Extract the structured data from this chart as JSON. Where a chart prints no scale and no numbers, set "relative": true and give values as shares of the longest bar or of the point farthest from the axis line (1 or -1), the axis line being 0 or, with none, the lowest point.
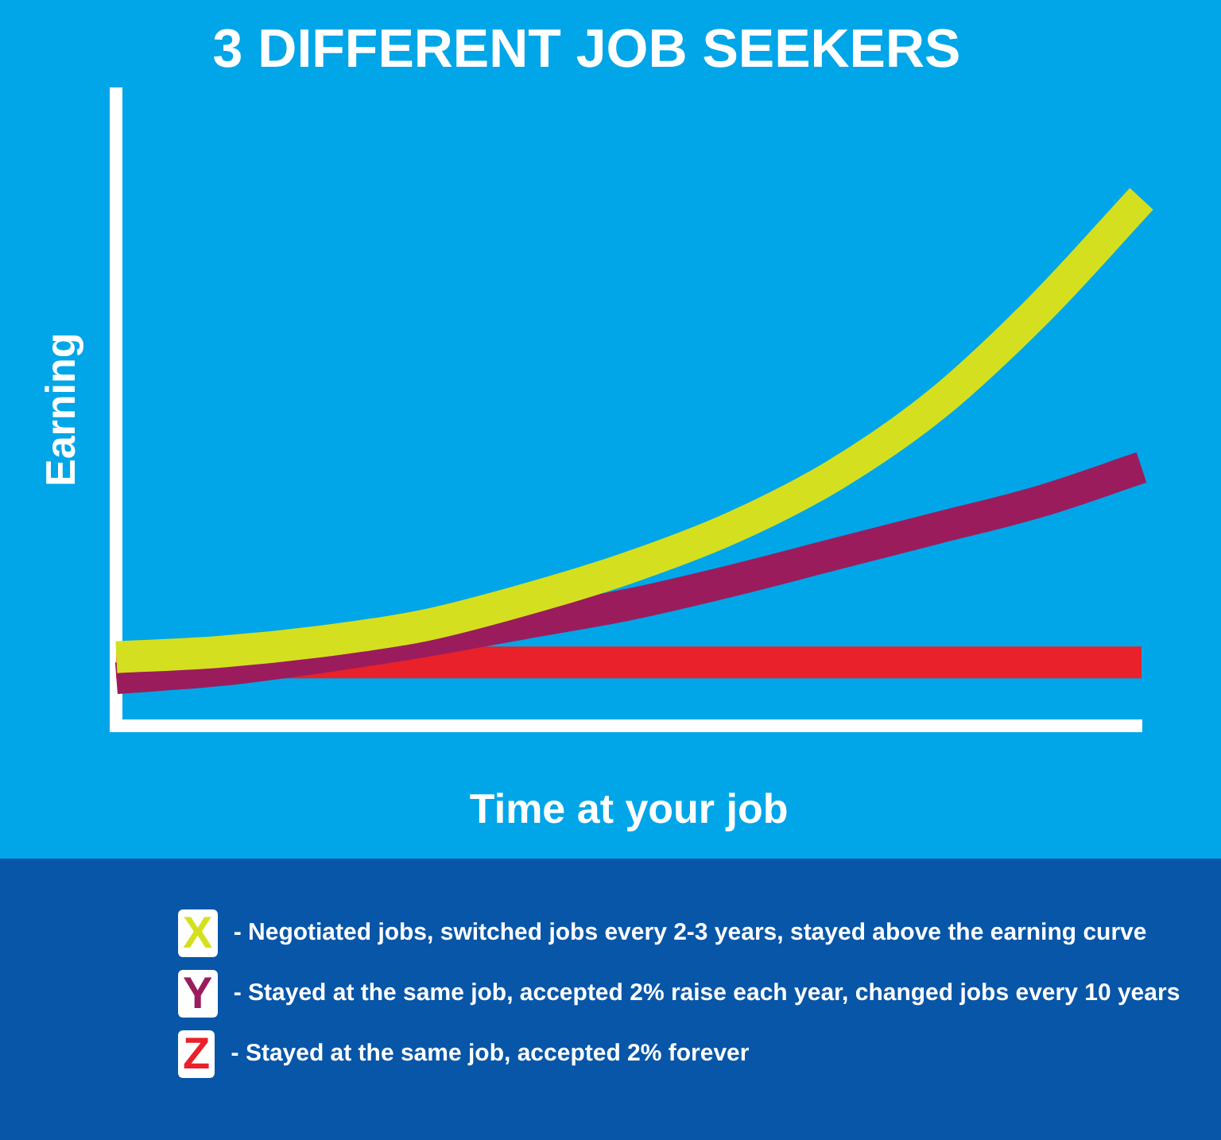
{
  "chart_data": {
    "type": "line",
    "title": "3 DIFFERENT JOB SEEKERS",
    "xlabel": "Time at your job",
    "ylabel": "Earning",
    "relative": true,
    "grid": false,
    "legend": "bottom",
    "categories": [
      null,
      null,
      null,
      null,
      null,
      null,
      null,
      null,
      null,
      null,
      null
    ],
    "series": [
      {
        "name": "X - Negotiated jobs, switched jobs every 2-3 years, stayed above the earning curve",
        "color": "#d4e01f",
        "values": [
          0.13,
          0.14,
          0.16,
          0.19,
          0.24,
          0.3,
          0.375,
          0.475,
          0.61,
          0.79,
          1.0
        ]
      },
      {
        "name": "Y - Stayed at the same job, accepted 2% raise each year, changed jobs every 10 years",
        "color": "#9b1c5c",
        "values": [
          0.09,
          0.105,
          0.13,
          0.16,
          0.195,
          0.23,
          0.275,
          0.325,
          0.375,
          0.425,
          0.49
        ]
      },
      {
        "name": "Z - Stayed at the same job, accepted 2% forever",
        "color": "#e8212b",
        "values": [
          0.12,
          0.12,
          0.12,
          0.12,
          0.12,
          0.12,
          0.12,
          0.12,
          0.12,
          0.12,
          0.12
        ]
      }
    ]
  }
}
